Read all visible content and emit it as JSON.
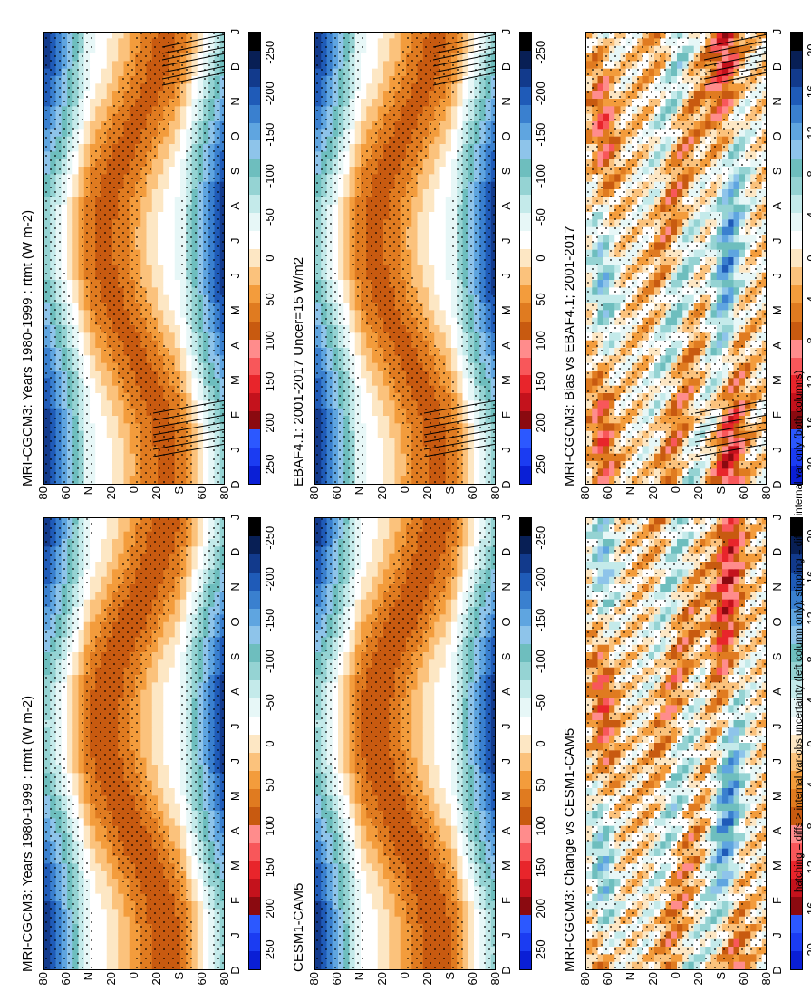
{
  "footnote": "hatching = diffs > internal var-obs uncertainty (left column only); stippling = diffs > internal var only (both columns)",
  "colorbars": {
    "abs": {
      "labels": [
        "250",
        "200",
        "150",
        "100",
        "50",
        "0",
        "-50",
        "-100",
        "-150",
        "-200",
        "-250"
      ],
      "colors": [
        "#0a1fd6",
        "#1b3cf2",
        "#2c58ff",
        "#8b0a10",
        "#c4121c",
        "#e8252b",
        "#f8575a",
        "#ff8c8c",
        "#c85a10",
        "#e07b20",
        "#f39c3c",
        "#fbc27c",
        "#fde7c4",
        "#ffffff",
        "#e7f7f7",
        "#c4eaea",
        "#95d3d3",
        "#6ebebe",
        "#8ec4ea",
        "#5fa5e0",
        "#3a80cf",
        "#1f5bb8",
        "#123a8c",
        "#081f55",
        "#000000"
      ]
    },
    "diff": {
      "labels": [
        "20",
        "16",
        "12",
        "8",
        "4",
        "0",
        "-4",
        "-8",
        "-12",
        "-16",
        "-20"
      ],
      "colors": [
        "#0a1fd6",
        "#1b3cf2",
        "#2c58ff",
        "#8b0a10",
        "#c4121c",
        "#e8252b",
        "#f8575a",
        "#ff8c8c",
        "#c85a10",
        "#e07b20",
        "#f39c3c",
        "#fbc27c",
        "#fde7c4",
        "#ffffff",
        "#e7f7f7",
        "#c4eaea",
        "#95d3d3",
        "#6ebebe",
        "#8ec4ea",
        "#5fa5e0",
        "#3a80cf",
        "#1f5bb8",
        "#123a8c",
        "#081f55",
        "#000000"
      ]
    }
  },
  "chart_data": [
    {
      "type": "heatmap",
      "title": "MRI-CGCM3: Years 1980-1999 : rtmt (W m-2)",
      "x": [
        "D",
        "J",
        "F",
        "M",
        "A",
        "M",
        "J",
        "J",
        "A",
        "S",
        "O",
        "N",
        "D",
        "J"
      ],
      "y": [
        "80",
        "60",
        "N",
        "20",
        "0",
        "20",
        "S",
        "60",
        "80"
      ],
      "colorbar": "abs",
      "fields": [
        {
          "dist": 0,
          "val": 0,
          "sx": 0.5,
          "sy": 2.2
        },
        {
          "dist": 0.22,
          "val": -80,
          "sx": 2.2,
          "sy": 1.0
        },
        {
          "dist": 0.33,
          "val": -250,
          "sx": 3.0,
          "sy": 1.0
        },
        {
          "dist": 0.53,
          "val": 150,
          "sx": 2.2,
          "sy": 1.0
        },
        {
          "dist": 0.86,
          "val": -120,
          "sx": 2.8,
          "sy": 1.0
        }
      ],
      "hatching": true,
      "stippling": true
    },
    {
      "type": "heatmap",
      "title": "MRI-CGCM3: Years 1980-1999 : rtmt (W m-2)",
      "x": [
        "D",
        "J",
        "F",
        "M",
        "A",
        "M",
        "J",
        "J",
        "A",
        "S",
        "O",
        "N",
        "D",
        "J"
      ],
      "y": [
        "80",
        "60",
        "N",
        "20",
        "0",
        "20",
        "S",
        "60",
        "80"
      ],
      "colorbar": "abs",
      "hatching": false,
      "stippling": true
    },
    {
      "type": "heatmap",
      "title": "EBAF4.1: 2001-2017 Uncer=15 W/m2",
      "x": [
        "D",
        "J",
        "F",
        "M",
        "A",
        "M",
        "J",
        "J",
        "A",
        "S",
        "O",
        "N",
        "D",
        "J"
      ],
      "y": [
        "80",
        "60",
        "N",
        "20",
        "0",
        "20",
        "S",
        "60",
        "80"
      ],
      "colorbar": "abs",
      "hatching": true,
      "stippling": true
    },
    {
      "type": "heatmap",
      "title": "CESM1-CAM5",
      "x": [
        "D",
        "J",
        "F",
        "M",
        "A",
        "M",
        "J",
        "J",
        "A",
        "S",
        "O",
        "N",
        "D",
        "J"
      ],
      "y": [
        "80",
        "60",
        "N",
        "20",
        "0",
        "20",
        "S",
        "60",
        "80"
      ],
      "colorbar": "abs",
      "hatching": false,
      "stippling": true
    },
    {
      "type": "heatmap",
      "title": "MRI-CGCM3: Bias vs EBAF4.1; 2001-2017",
      "x": [
        "D",
        "J",
        "F",
        "M",
        "A",
        "M",
        "J",
        "J",
        "A",
        "S",
        "O",
        "N",
        "D",
        "J"
      ],
      "y": [
        "80",
        "60",
        "N",
        "20",
        "0",
        "20",
        "S",
        "60",
        "80"
      ],
      "colorbar": "diff",
      "hatching": true,
      "stippling": true
    },
    {
      "type": "heatmap",
      "title": "MRI-CGCM3: Change vs CESM1-CAM5",
      "x": [
        "D",
        "J",
        "F",
        "M",
        "A",
        "M",
        "J",
        "J",
        "A",
        "S",
        "O",
        "N",
        "D",
        "J"
      ],
      "y": [
        "80",
        "60",
        "N",
        "20",
        "0",
        "20",
        "S",
        "60",
        "80"
      ],
      "colorbar": "diff",
      "hatching": false,
      "stippling": true
    }
  ]
}
